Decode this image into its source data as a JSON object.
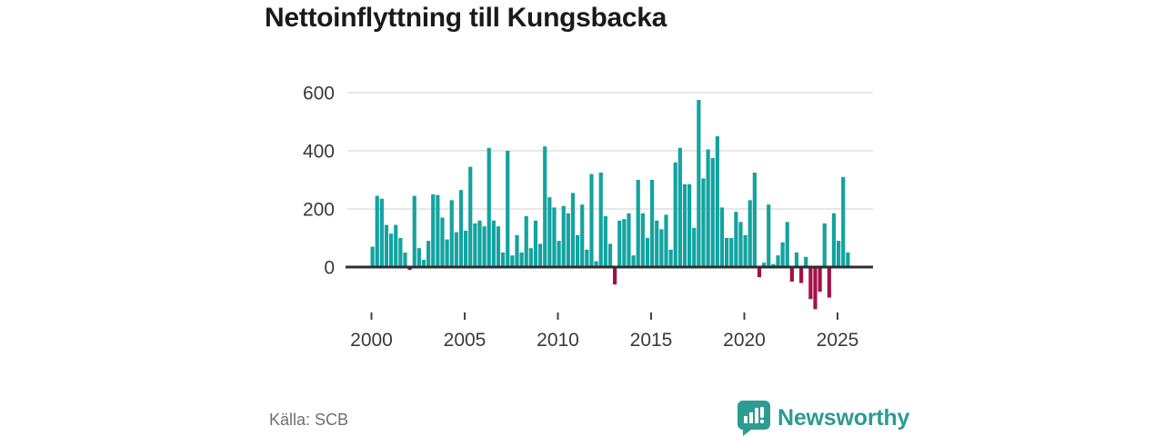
{
  "header": {
    "title": "Nettoinflyttning till Kungsbacka"
  },
  "footer": {
    "source": "Källa: SCB",
    "logo_text": "Newsworthy"
  },
  "colors": {
    "positive_bar": "#13a3a0",
    "negative_bar": "#a51149",
    "logo": "#2d9b91",
    "grid": "#d9d9d9",
    "axis": "#2e2e2e",
    "title_text": "#1a1a1a",
    "tick_text": "#3a3a3a",
    "source_text": "#6f6f6f"
  },
  "chart_data": {
    "type": "bar",
    "title": "Nettoinflyttning till Kungsbacka",
    "frequency": "quarterly",
    "period_start": "2000 Q1",
    "period_end": "2025 Q3",
    "x_tick_labels": [
      "2000",
      "2005",
      "2010",
      "2015",
      "2020",
      "2025"
    ],
    "y_tick_values": [
      0,
      200,
      400,
      600
    ],
    "gridline_values": [
      200,
      400,
      600
    ],
    "ylim": [
      -160,
      620
    ],
    "legend": "none",
    "values": [
      70,
      245,
      235,
      145,
      115,
      145,
      100,
      50,
      -10,
      245,
      65,
      25,
      90,
      250,
      248,
      170,
      95,
      230,
      120,
      265,
      125,
      345,
      150,
      160,
      140,
      410,
      160,
      140,
      50,
      400,
      40,
      110,
      50,
      175,
      65,
      160,
      80,
      415,
      240,
      205,
      90,
      210,
      185,
      255,
      110,
      215,
      60,
      320,
      20,
      325,
      175,
      80,
      -60,
      160,
      165,
      185,
      40,
      300,
      185,
      100,
      300,
      160,
      130,
      180,
      60,
      360,
      410,
      285,
      285,
      135,
      575,
      305,
      405,
      375,
      450,
      205,
      100,
      100,
      190,
      155,
      110,
      230,
      325,
      -35,
      15,
      215,
      10,
      40,
      85,
      155,
      -50,
      50,
      -55,
      35,
      -110,
      -145,
      -85,
      150,
      -105,
      185,
      90,
      310,
      50
    ]
  }
}
